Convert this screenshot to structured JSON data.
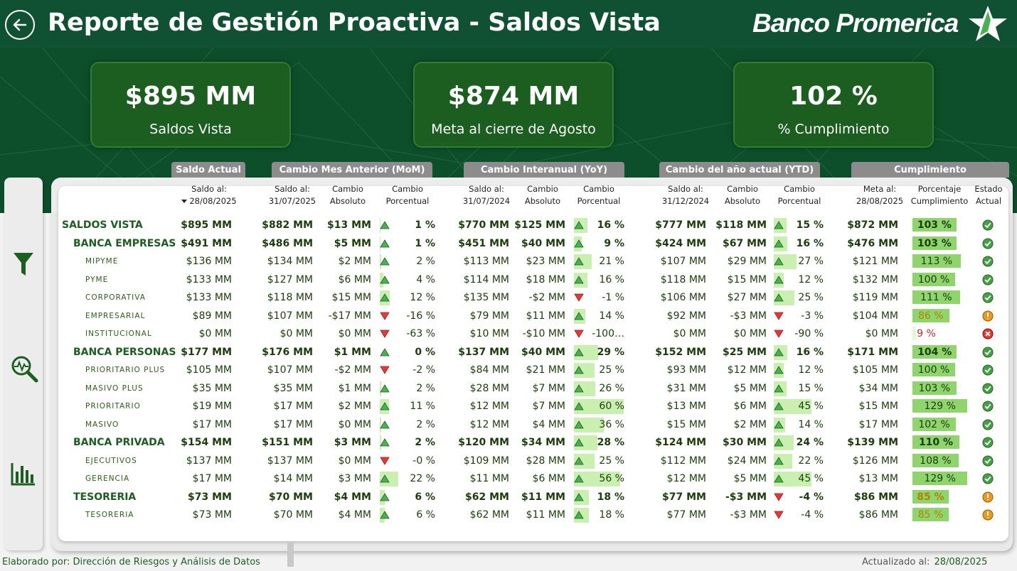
{
  "header": {
    "title": "Reporte de Gestión Proactiva - Saldos Vista",
    "logo_text": "Banco Promerica"
  },
  "kpis": [
    {
      "value": "$895 MM",
      "label": "Saldos Vista"
    },
    {
      "value": "$874 MM",
      "label": "Meta al cierre de Agosto"
    },
    {
      "value": "102 %",
      "label": "% Cumplimiento"
    }
  ],
  "group_headers": {
    "saldo_actual": "Saldo Actual",
    "mom": "Cambio Mes Anterior (MoM)",
    "yoy": "Cambio Interanual (YoY)",
    "ytd": "Cambio del año actual (YTD)",
    "cumplimiento": "Cumplimiento"
  },
  "column_headers": {
    "saldo_actual": [
      "Saldo al:",
      "28/08/2025"
    ],
    "mom_saldo": [
      "Saldo al:",
      "31/07/2025"
    ],
    "mom_abs": [
      "Cambio",
      "Absoluto"
    ],
    "mom_pct": [
      "Cambio",
      "Porcentual"
    ],
    "yoy_saldo": [
      "Saldo al:",
      "31/07/2024"
    ],
    "yoy_abs": [
      "Cambio",
      "Absoluto"
    ],
    "yoy_pct": [
      "Cambio",
      "Porcentual"
    ],
    "ytd_saldo": [
      "Saldo al:",
      "31/12/2024"
    ],
    "ytd_abs": [
      "Cambio",
      "Absoluto"
    ],
    "ytd_pct": [
      "Cambio",
      "Porcentual"
    ],
    "meta": [
      "Meta al:",
      "28/08/2025"
    ],
    "pct_cump": [
      "Porcentaje",
      "Cumplimiento"
    ],
    "estado": [
      "Estado",
      "Actual"
    ]
  },
  "colors": {
    "brand_green": "#0f5132",
    "up": "#4caf50",
    "down": "#e53935",
    "ok": "#43a047",
    "warn": "#e69b1e",
    "bad": "#e53935"
  },
  "rows": [
    {
      "level": 0,
      "name": "SALDOS VISTA",
      "actual": "$895 MM",
      "mom_saldo": "$882 MM",
      "mom_abs": "$13 MM",
      "mom_dir": "up",
      "mom_pct": "1 %",
      "mom_val": 1,
      "yoy_saldo": "$770 MM",
      "yoy_abs": "$125 MM",
      "yoy_dir": "up",
      "yoy_pct": "16 %",
      "yoy_val": 16,
      "ytd_saldo": "$777 MM",
      "ytd_abs": "$118 MM",
      "ytd_dir": "up",
      "ytd_pct": "15 %",
      "ytd_val": 15,
      "meta": "$872 MM",
      "cump": "103 %",
      "cump_val": 103,
      "status": "ok"
    },
    {
      "level": 1,
      "name": "BANCA EMPRESAS",
      "actual": "$491 MM",
      "mom_saldo": "$486 MM",
      "mom_abs": "$5 MM",
      "mom_dir": "up",
      "mom_pct": "1 %",
      "mom_val": 1,
      "yoy_saldo": "$451 MM",
      "yoy_abs": "$40 MM",
      "yoy_dir": "up",
      "yoy_pct": "9 %",
      "yoy_val": 9,
      "ytd_saldo": "$424 MM",
      "ytd_abs": "$67 MM",
      "ytd_dir": "up",
      "ytd_pct": "16 %",
      "ytd_val": 16,
      "meta": "$476 MM",
      "cump": "103 %",
      "cump_val": 103,
      "status": "ok"
    },
    {
      "level": 2,
      "name": "MIPYME",
      "actual": "$136 MM",
      "mom_saldo": "$134 MM",
      "mom_abs": "$2 MM",
      "mom_dir": "up",
      "mom_pct": "2 %",
      "mom_val": 2,
      "yoy_saldo": "$113 MM",
      "yoy_abs": "$23 MM",
      "yoy_dir": "up",
      "yoy_pct": "21 %",
      "yoy_val": 21,
      "ytd_saldo": "$107 MM",
      "ytd_abs": "$29 MM",
      "ytd_dir": "up",
      "ytd_pct": "27 %",
      "ytd_val": 27,
      "meta": "$121 MM",
      "cump": "113 %",
      "cump_val": 113,
      "status": "ok"
    },
    {
      "level": 2,
      "name": "PYME",
      "actual": "$133 MM",
      "mom_saldo": "$127 MM",
      "mom_abs": "$6 MM",
      "mom_dir": "up",
      "mom_pct": "4 %",
      "mom_val": 4,
      "yoy_saldo": "$114 MM",
      "yoy_abs": "$18 MM",
      "yoy_dir": "up",
      "yoy_pct": "16 %",
      "yoy_val": 16,
      "ytd_saldo": "$118 MM",
      "ytd_abs": "$15 MM",
      "ytd_dir": "up",
      "ytd_pct": "12 %",
      "ytd_val": 12,
      "meta": "$132 MM",
      "cump": "100 %",
      "cump_val": 100,
      "status": "ok"
    },
    {
      "level": 2,
      "name": "CORPORATIVA",
      "actual": "$133 MM",
      "mom_saldo": "$118 MM",
      "mom_abs": "$15 MM",
      "mom_dir": "up",
      "mom_pct": "12 %",
      "mom_val": 12,
      "yoy_saldo": "$135 MM",
      "yoy_abs": "-$2 MM",
      "yoy_dir": "down",
      "yoy_pct": "-1 %",
      "yoy_val": -1,
      "ytd_saldo": "$106 MM",
      "ytd_abs": "$27 MM",
      "ytd_dir": "up",
      "ytd_pct": "25 %",
      "ytd_val": 25,
      "meta": "$119 MM",
      "cump": "111 %",
      "cump_val": 111,
      "status": "ok"
    },
    {
      "level": 2,
      "name": "EMPRESARIAL",
      "actual": "$89 MM",
      "mom_saldo": "$107 MM",
      "mom_abs": "-$17 MM",
      "mom_dir": "down",
      "mom_pct": "-16 %",
      "mom_val": -16,
      "yoy_saldo": "$79 MM",
      "yoy_abs": "$11 MM",
      "yoy_dir": "up",
      "yoy_pct": "14 %",
      "yoy_val": 14,
      "ytd_saldo": "$92 MM",
      "ytd_abs": "-$3 MM",
      "ytd_dir": "down",
      "ytd_pct": "-3 %",
      "ytd_val": -3,
      "meta": "$104 MM",
      "cump": "86 %",
      "cump_val": 86,
      "status": "warn"
    },
    {
      "level": 2,
      "name": "INSTITUCIONAL",
      "actual": "$0 MM",
      "mom_saldo": "$0 MM",
      "mom_abs": "$0 MM",
      "mom_dir": "down",
      "mom_pct": "-63 %",
      "mom_val": -63,
      "yoy_saldo": "$10 MM",
      "yoy_abs": "-$10 MM",
      "yoy_dir": "down",
      "yoy_pct": "-100…",
      "yoy_val": -100,
      "ytd_saldo": "$0 MM",
      "ytd_abs": "$0 MM",
      "ytd_dir": "down",
      "ytd_pct": "-90 %",
      "ytd_val": -90,
      "meta": "$0 MM",
      "cump": "9 %",
      "cump_val": 9,
      "status": "bad"
    },
    {
      "level": 1,
      "name": "BANCA PERSONAS",
      "actual": "$177 MM",
      "mom_saldo": "$176 MM",
      "mom_abs": "$1 MM",
      "mom_dir": "up",
      "mom_pct": "0 %",
      "mom_val": 0,
      "yoy_saldo": "$137 MM",
      "yoy_abs": "$40 MM",
      "yoy_dir": "up",
      "yoy_pct": "29 %",
      "yoy_val": 29,
      "ytd_saldo": "$152 MM",
      "ytd_abs": "$25 MM",
      "ytd_dir": "up",
      "ytd_pct": "16 %",
      "ytd_val": 16,
      "meta": "$171 MM",
      "cump": "104 %",
      "cump_val": 104,
      "status": "ok"
    },
    {
      "level": 2,
      "name": "PRIORITARIO PLUS",
      "actual": "$105 MM",
      "mom_saldo": "$107 MM",
      "mom_abs": "-$2 MM",
      "mom_dir": "down",
      "mom_pct": "-2 %",
      "mom_val": -2,
      "yoy_saldo": "$84 MM",
      "yoy_abs": "$21 MM",
      "yoy_dir": "up",
      "yoy_pct": "25 %",
      "yoy_val": 25,
      "ytd_saldo": "$93 MM",
      "ytd_abs": "$12 MM",
      "ytd_dir": "up",
      "ytd_pct": "12 %",
      "ytd_val": 12,
      "meta": "$105 MM",
      "cump": "100 %",
      "cump_val": 100,
      "status": "ok"
    },
    {
      "level": 2,
      "name": "MASIVO PLUS",
      "actual": "$35 MM",
      "mom_saldo": "$35 MM",
      "mom_abs": "$1 MM",
      "mom_dir": "up",
      "mom_pct": "2 %",
      "mom_val": 2,
      "yoy_saldo": "$28 MM",
      "yoy_abs": "$7 MM",
      "yoy_dir": "up",
      "yoy_pct": "26 %",
      "yoy_val": 26,
      "ytd_saldo": "$31 MM",
      "ytd_abs": "$5 MM",
      "ytd_dir": "up",
      "ytd_pct": "15 %",
      "ytd_val": 15,
      "meta": "$34 MM",
      "cump": "103 %",
      "cump_val": 103,
      "status": "ok"
    },
    {
      "level": 2,
      "name": "PRIORITARIO",
      "actual": "$19 MM",
      "mom_saldo": "$17 MM",
      "mom_abs": "$2 MM",
      "mom_dir": "up",
      "mom_pct": "11 %",
      "mom_val": 11,
      "yoy_saldo": "$12 MM",
      "yoy_abs": "$7 MM",
      "yoy_dir": "up",
      "yoy_pct": "60 %",
      "yoy_val": 60,
      "ytd_saldo": "$13 MM",
      "ytd_abs": "$6 MM",
      "ytd_dir": "up",
      "ytd_pct": "45 %",
      "ytd_val": 45,
      "meta": "$15 MM",
      "cump": "129 %",
      "cump_val": 129,
      "status": "ok"
    },
    {
      "level": 2,
      "name": "MASIVO",
      "actual": "$17 MM",
      "mom_saldo": "$17 MM",
      "mom_abs": "$0 MM",
      "mom_dir": "up",
      "mom_pct": "2 %",
      "mom_val": 2,
      "yoy_saldo": "$12 MM",
      "yoy_abs": "$4 MM",
      "yoy_dir": "up",
      "yoy_pct": "36 %",
      "yoy_val": 36,
      "ytd_saldo": "$15 MM",
      "ytd_abs": "$2 MM",
      "ytd_dir": "up",
      "ytd_pct": "14 %",
      "ytd_val": 14,
      "meta": "$17 MM",
      "cump": "102 %",
      "cump_val": 102,
      "status": "ok"
    },
    {
      "level": 1,
      "name": "BANCA PRIVADA",
      "actual": "$154 MM",
      "mom_saldo": "$151 MM",
      "mom_abs": "$3 MM",
      "mom_dir": "up",
      "mom_pct": "2 %",
      "mom_val": 2,
      "yoy_saldo": "$120 MM",
      "yoy_abs": "$34 MM",
      "yoy_dir": "up",
      "yoy_pct": "28 %",
      "yoy_val": 28,
      "ytd_saldo": "$124 MM",
      "ytd_abs": "$30 MM",
      "ytd_dir": "up",
      "ytd_pct": "24 %",
      "ytd_val": 24,
      "meta": "$139 MM",
      "cump": "110 %",
      "cump_val": 110,
      "status": "ok"
    },
    {
      "level": 2,
      "name": "EJECUTIVOS",
      "actual": "$137 MM",
      "mom_saldo": "$137 MM",
      "mom_abs": "$0 MM",
      "mom_dir": "down",
      "mom_pct": "-0 %",
      "mom_val": 0,
      "yoy_saldo": "$109 MM",
      "yoy_abs": "$28 MM",
      "yoy_dir": "up",
      "yoy_pct": "25 %",
      "yoy_val": 25,
      "ytd_saldo": "$112 MM",
      "ytd_abs": "$24 MM",
      "ytd_dir": "up",
      "ytd_pct": "22 %",
      "ytd_val": 22,
      "meta": "$126 MM",
      "cump": "108 %",
      "cump_val": 108,
      "status": "ok"
    },
    {
      "level": 2,
      "name": "GERENCIA",
      "actual": "$17 MM",
      "mom_saldo": "$14 MM",
      "mom_abs": "$3 MM",
      "mom_dir": "up",
      "mom_pct": "22 %",
      "mom_val": 22,
      "yoy_saldo": "$11 MM",
      "yoy_abs": "$6 MM",
      "yoy_dir": "up",
      "yoy_pct": "56 %",
      "yoy_val": 56,
      "ytd_saldo": "$12 MM",
      "ytd_abs": "$5 MM",
      "ytd_dir": "up",
      "ytd_pct": "45 %",
      "ytd_val": 45,
      "meta": "$13 MM",
      "cump": "129 %",
      "cump_val": 129,
      "status": "ok"
    },
    {
      "level": 1,
      "name": "TESORERIA",
      "actual": "$73 MM",
      "mom_saldo": "$70 MM",
      "mom_abs": "$4 MM",
      "mom_dir": "up",
      "mom_pct": "6 %",
      "mom_val": 6,
      "yoy_saldo": "$62 MM",
      "yoy_abs": "$11 MM",
      "yoy_dir": "up",
      "yoy_pct": "18 %",
      "yoy_val": 18,
      "ytd_saldo": "$77 MM",
      "ytd_abs": "-$3 MM",
      "ytd_dir": "down",
      "ytd_pct": "-4 %",
      "ytd_val": -4,
      "meta": "$86 MM",
      "cump": "85 %",
      "cump_val": 85,
      "status": "warn"
    },
    {
      "level": 2,
      "name": "TESORERIA",
      "actual": "$73 MM",
      "mom_saldo": "$70 MM",
      "mom_abs": "$4 MM",
      "mom_dir": "up",
      "mom_pct": "6 %",
      "mom_val": 6,
      "yoy_saldo": "$62 MM",
      "yoy_abs": "$11 MM",
      "yoy_dir": "up",
      "yoy_pct": "18 %",
      "yoy_val": 18,
      "ytd_saldo": "$77 MM",
      "ytd_abs": "-$3 MM",
      "ytd_dir": "down",
      "ytd_pct": "-4 %",
      "ytd_val": -4,
      "meta": "$86 MM",
      "cump": "85 %",
      "cump_val": 85,
      "status": "warn"
    }
  ],
  "footer": {
    "left": "Elaborado por: Dirección de Riesgos y Análisis de Datos",
    "right_label": "Actualizado al:",
    "right_date": "28/08/2025"
  },
  "nav": {
    "icons": [
      "filter-icon",
      "search-analytics-icon",
      "bar-chart-icon"
    ]
  }
}
